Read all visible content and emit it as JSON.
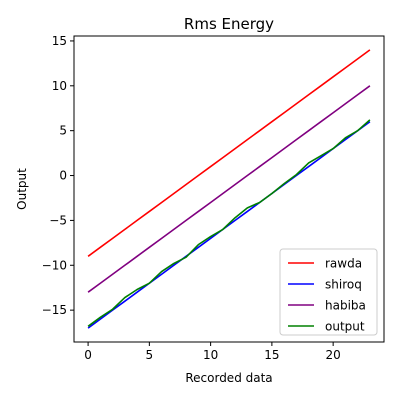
{
  "chart_data": {
    "type": "line",
    "title": "Rms Energy",
    "xlabel": "Recorded data",
    "ylabel": "Output",
    "xlim": [
      -1.15,
      24.15
    ],
    "ylim": [
      -18.55,
      15.55
    ],
    "xticks": [
      0,
      5,
      10,
      15,
      20
    ],
    "yticks": [
      -15,
      -10,
      -5,
      0,
      5,
      10,
      15
    ],
    "legend_position": "lower-right",
    "grid": false,
    "x": [
      0,
      1,
      2,
      3,
      4,
      5,
      6,
      7,
      8,
      9,
      10,
      11,
      12,
      13,
      14,
      15,
      16,
      17,
      18,
      19,
      20,
      21,
      22,
      23
    ],
    "series": [
      {
        "name": "rawda",
        "color": "#ff0000",
        "values": [
          -9,
          -8,
          -7,
          -6,
          -5,
          -4,
          -3,
          -2,
          -1,
          0,
          1,
          2,
          3,
          4,
          5,
          6,
          7,
          8,
          9,
          10,
          11,
          12,
          13,
          14
        ]
      },
      {
        "name": "shiroq",
        "color": "#0000ff",
        "values": [
          -17,
          -16,
          -15,
          -14,
          -13,
          -12,
          -11,
          -10,
          -9,
          -8,
          -7,
          -6,
          -5,
          -4,
          -3,
          -2,
          -1,
          0,
          1,
          2,
          3,
          4,
          5,
          6
        ]
      },
      {
        "name": "habiba",
        "color": "#800080",
        "values": [
          -13,
          -12,
          -11,
          -10,
          -9,
          -8,
          -7,
          -6,
          -5,
          -4,
          -3,
          -2,
          -1,
          0,
          1,
          2,
          3,
          4,
          5,
          6,
          7,
          8,
          9,
          10
        ]
      },
      {
        "name": "output",
        "color": "#008000",
        "values": [
          -16.8,
          -15.8,
          -14.9,
          -13.6,
          -12.7,
          -12.0,
          -10.7,
          -9.8,
          -9.1,
          -7.7,
          -6.8,
          -6.0,
          -4.7,
          -3.6,
          -3.0,
          -2.0,
          -0.9,
          0.1,
          1.4,
          2.2,
          3.0,
          4.2,
          5.0,
          6.2
        ]
      }
    ]
  }
}
